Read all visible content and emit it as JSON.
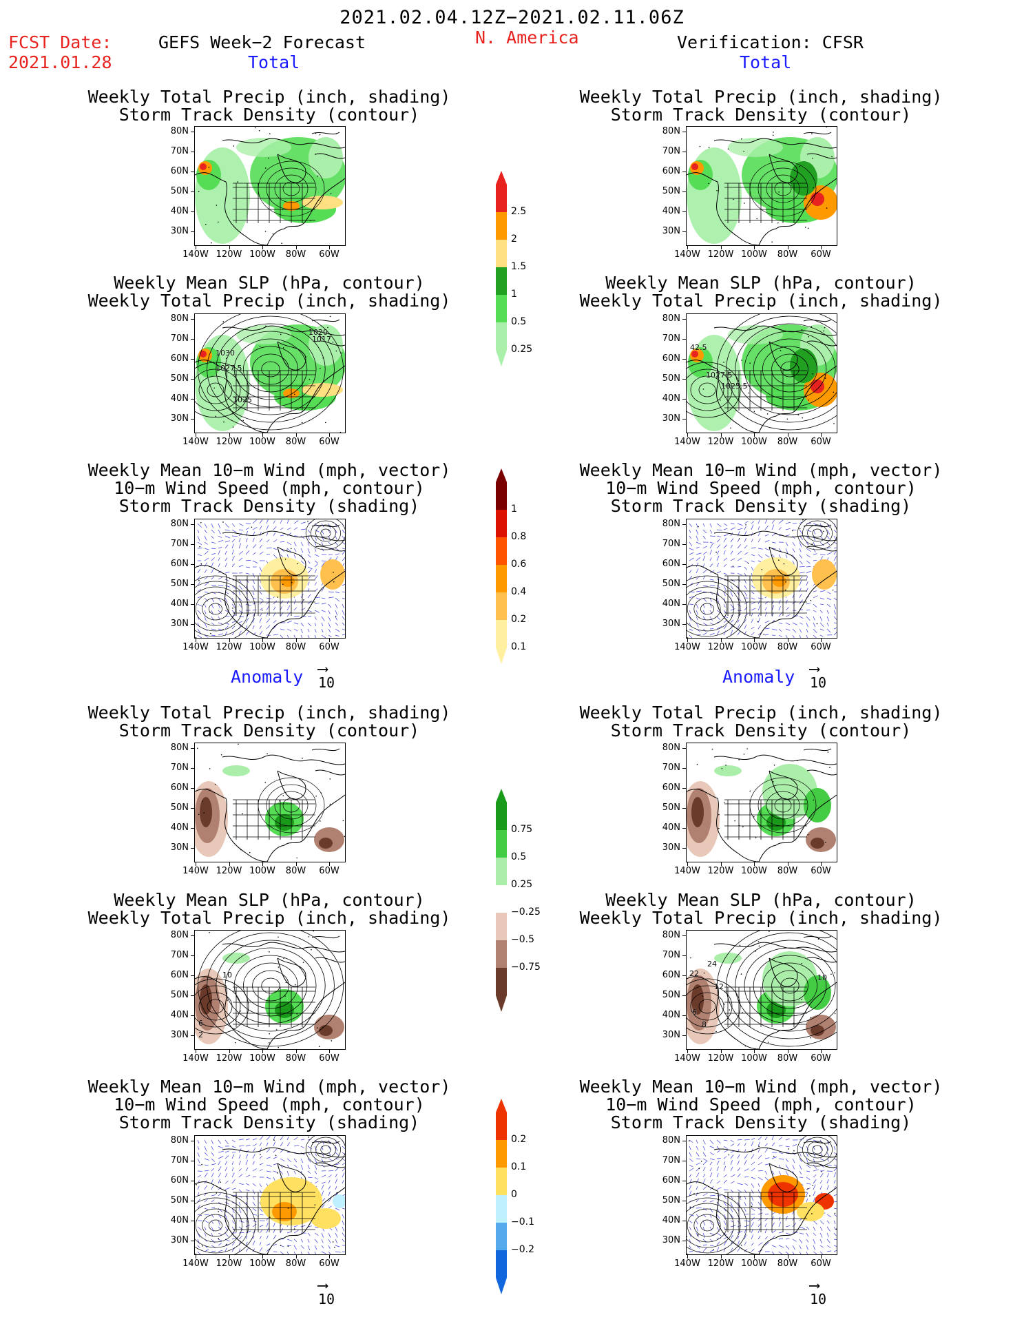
{
  "header": {
    "period": "2021.02.04.12Z−2021.02.11.06Z",
    "fcst_date_label": "FCST Date:",
    "fcst_date": "2021.01.28",
    "left_title": "GEFS Week−2 Forecast",
    "region": "N. America",
    "right_title": "Verification: CFSR"
  },
  "sections": {
    "total": "Total",
    "anomaly": "Anomaly"
  },
  "panel_titles": {
    "precip_track": [
      "Weekly Total Precip (inch, shading)",
      "Storm Track Density (contour)"
    ],
    "slp_precip": [
      "Weekly Mean SLP (hPa, contour)",
      "Weekly Total Precip (inch, shading)"
    ],
    "wind_track": [
      "Weekly Mean 10−m Wind (mph, vector)",
      "10−m Wind Speed (mph, contour)",
      "Storm Track Density (shading)"
    ]
  },
  "axes": {
    "lat_labels": [
      "80N",
      "70N",
      "60N",
      "50N",
      "40N",
      "30N"
    ],
    "lon_labels": [
      "140W",
      "120W",
      "100W",
      "80W",
      "60W"
    ]
  },
  "vector_ref": "10",
  "contour_labels": {
    "gefs_slp_total": [
      "1030",
      "1027.5",
      "1025",
      "1020",
      "1017"
    ],
    "cfsr_slp_total": [
      "1027.5",
      "1025.5",
      "42.5"
    ],
    "gefs_slp_anom": [
      "10",
      "6",
      "2"
    ],
    "cfsr_slp_anom": [
      "22",
      "24",
      "12",
      "10",
      "6",
      "8"
    ]
  },
  "colorbars": {
    "precip_total": {
      "labels": [
        "2.5",
        "2",
        "1.5",
        "1",
        "0.5",
        "0.25"
      ],
      "colors": [
        "#e8231f",
        "#ff9900",
        "#ffe080",
        "#22a022",
        "#55dd55",
        "#aaf0aa"
      ]
    },
    "track_total": {
      "labels": [
        "1",
        "0.8",
        "0.6",
        "0.4",
        "0.2",
        "0.1"
      ],
      "colors": [
        "#7a0000",
        "#dd1100",
        "#ff5500",
        "#ff9900",
        "#ffc04d",
        "#fff0a0"
      ]
    },
    "precip_anom": {
      "labels": [
        "0.75",
        "0.5",
        "0.25",
        "−0.25",
        "−0.5",
        "−0.75"
      ],
      "colors": [
        "#1a9a1a",
        "#44cc44",
        "#aaeeaa",
        "#ffffff",
        "#e8c8b8",
        "#b08070",
        "#6a3a2a"
      ]
    },
    "track_anom": {
      "labels": [
        "0.2",
        "0.1",
        "0",
        "−0.1",
        "−0.2"
      ],
      "colors": [
        "#ee3300",
        "#ff9900",
        "#ffe060",
        "#bff0ff",
        "#55aaee",
        "#1166dd"
      ]
    }
  }
}
